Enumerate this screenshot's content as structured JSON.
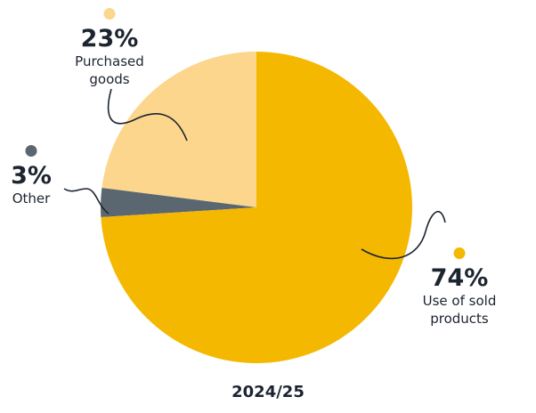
{
  "chart_data": {
    "type": "pie",
    "title": "2024/25",
    "categories": [
      "Use of sold products",
      "Other",
      "Purchased goods"
    ],
    "values": [
      74,
      3,
      23
    ],
    "value_labels": [
      "74%",
      "3%",
      "23%"
    ],
    "colors": [
      "#f5b800",
      "#5b6770",
      "#fbd68c"
    ]
  }
}
